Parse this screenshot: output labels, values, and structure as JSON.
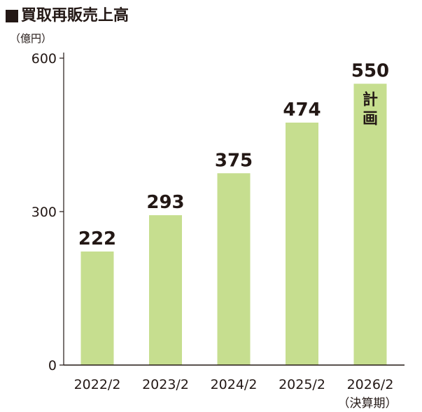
{
  "chart_data": {
    "type": "bar",
    "title": "買取再販売上高",
    "unit_label": "（億円）",
    "categories": [
      "2022/2",
      "2023/2",
      "2024/2",
      "2025/2",
      "2026/2"
    ],
    "category_notes": [
      "",
      "",
      "",
      "",
      "（決算期）"
    ],
    "values": [
      222,
      293,
      375,
      474,
      550
    ],
    "value_labels": [
      "222",
      "293",
      "375",
      "474",
      "550"
    ],
    "bar_notes": [
      "",
      "",
      "",
      "",
      "計画"
    ],
    "yticks": [
      0,
      300,
      600
    ],
    "ytick_labels": [
      "0",
      "300",
      "600"
    ],
    "ylim": [
      0,
      600
    ],
    "grid": false,
    "legend": "none",
    "colors": {
      "bar": "#c6de8f",
      "axis": "#231815",
      "text": "#231815"
    }
  }
}
